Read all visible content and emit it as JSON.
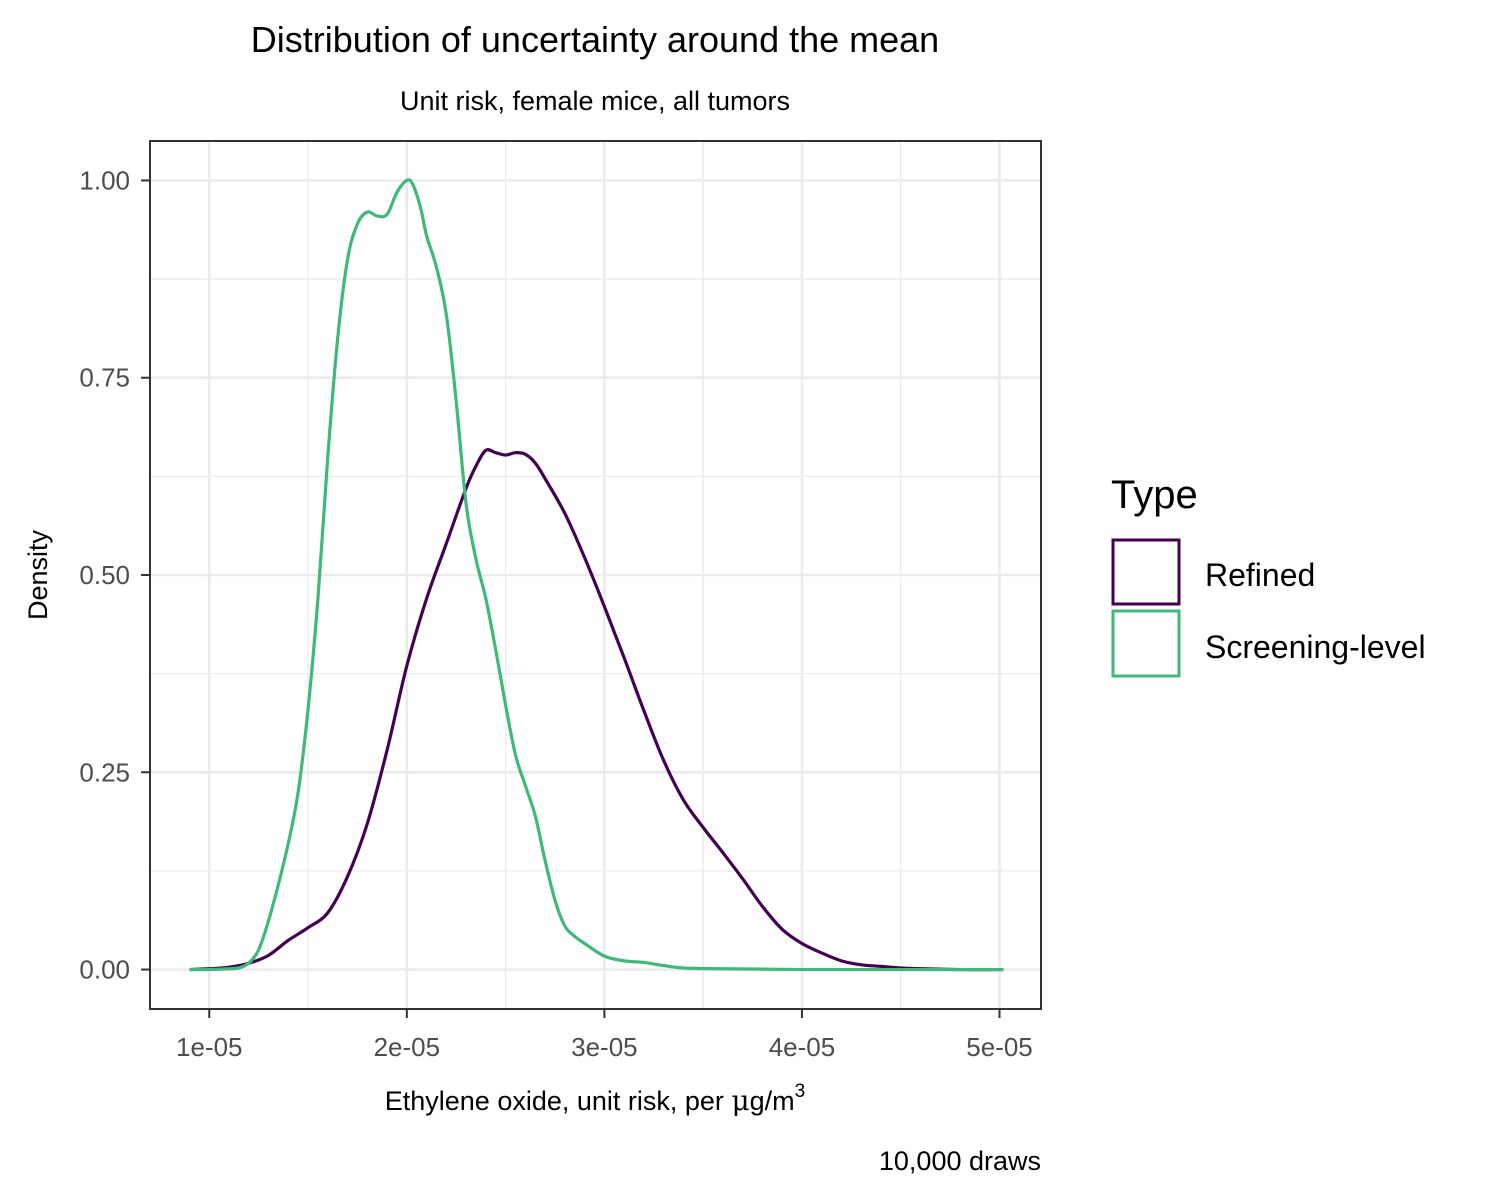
{
  "chart_data": {
    "type": "line",
    "title": "Distribution of uncertainty around the mean",
    "subtitle": "Unit risk, female mice, all tumors",
    "xlabel_main": "Ethylene oxide, unit risk, per ",
    "xlabel_mu": "μ",
    "xlabel_unit": "g/m",
    "xlabel_sup": "3",
    "ylabel": "Density",
    "caption": "10,000 draws",
    "xlim": [
      7e-06,
      5.21e-05
    ],
    "ylim": [
      -0.05,
      1.05
    ],
    "x_ticks": [
      1e-05,
      2e-05,
      3e-05,
      4e-05,
      5e-05
    ],
    "x_tick_labels": [
      "1e-05",
      "2e-05",
      "3e-05",
      "4e-05",
      "5e-05"
    ],
    "y_ticks": [
      0,
      0.25,
      0.5,
      0.75,
      1
    ],
    "y_tick_labels": [
      "0.00",
      "0.25",
      "0.50",
      "0.75",
      "1.00"
    ],
    "grid": true,
    "legend": {
      "title": "Type",
      "position": "right",
      "items": [
        {
          "label": "Refined",
          "color": "#440154"
        },
        {
          "label": "Screening-level",
          "color": "#3EB97A"
        }
      ]
    },
    "series": [
      {
        "name": "Refined",
        "color": "#440154",
        "x": [
          9e-06,
          1e-05,
          1.1e-05,
          1.2e-05,
          1.3e-05,
          1.4e-05,
          1.5e-05,
          1.6e-05,
          1.7e-05,
          1.8e-05,
          1.9e-05,
          2e-05,
          2.1e-05,
          2.2e-05,
          2.3e-05,
          2.35e-05,
          2.4e-05,
          2.45e-05,
          2.5e-05,
          2.55e-05,
          2.6e-05,
          2.65e-05,
          2.7e-05,
          2.8e-05,
          2.9e-05,
          3e-05,
          3.1e-05,
          3.2e-05,
          3.3e-05,
          3.4e-05,
          3.5e-05,
          3.6e-05,
          3.7e-05,
          3.8e-05,
          3.9e-05,
          4e-05,
          4.1e-05,
          4.2e-05,
          4.3e-05,
          4.4e-05,
          4.5e-05,
          4.6e-05,
          4.8e-05,
          5.02e-05
        ],
        "y": [
          0.0,
          0.001,
          0.003,
          0.008,
          0.018,
          0.037,
          0.053,
          0.072,
          0.118,
          0.185,
          0.278,
          0.385,
          0.47,
          0.54,
          0.61,
          0.638,
          0.658,
          0.655,
          0.652,
          0.655,
          0.653,
          0.642,
          0.622,
          0.578,
          0.522,
          0.46,
          0.395,
          0.328,
          0.265,
          0.215,
          0.18,
          0.148,
          0.115,
          0.08,
          0.051,
          0.033,
          0.021,
          0.011,
          0.006,
          0.004,
          0.002,
          0.001,
          0.0,
          0.0
        ]
      },
      {
        "name": "Screening-level",
        "color": "#3EB97A",
        "x": [
          9e-06,
          1e-05,
          1.1e-05,
          1.15e-05,
          1.2e-05,
          1.25e-05,
          1.3e-05,
          1.35e-05,
          1.4e-05,
          1.45e-05,
          1.5e-05,
          1.55e-05,
          1.6e-05,
          1.65e-05,
          1.7e-05,
          1.75e-05,
          1.8e-05,
          1.85e-05,
          1.9e-05,
          1.95e-05,
          2e-05,
          2.03e-05,
          2.07e-05,
          2.1e-05,
          2.15e-05,
          2.2e-05,
          2.25e-05,
          2.3e-05,
          2.35e-05,
          2.4e-05,
          2.45e-05,
          2.5e-05,
          2.55e-05,
          2.6e-05,
          2.65e-05,
          2.7e-05,
          2.75e-05,
          2.8e-05,
          2.85e-05,
          2.9e-05,
          3e-05,
          3.1e-05,
          3.2e-05,
          3.3e-05,
          3.4e-05,
          3.6e-05,
          4e-05,
          4.5e-05,
          5.02e-05
        ],
        "y": [
          0.0,
          0.0,
          0.001,
          0.002,
          0.008,
          0.025,
          0.062,
          0.108,
          0.16,
          0.225,
          0.33,
          0.47,
          0.65,
          0.8,
          0.9,
          0.945,
          0.96,
          0.955,
          0.957,
          0.985,
          1.0,
          0.995,
          0.965,
          0.93,
          0.89,
          0.83,
          0.72,
          0.59,
          0.52,
          0.47,
          0.405,
          0.335,
          0.272,
          0.233,
          0.195,
          0.138,
          0.088,
          0.055,
          0.042,
          0.033,
          0.017,
          0.011,
          0.009,
          0.005,
          0.002,
          0.001,
          0.0,
          0.0,
          0.0
        ]
      }
    ]
  }
}
